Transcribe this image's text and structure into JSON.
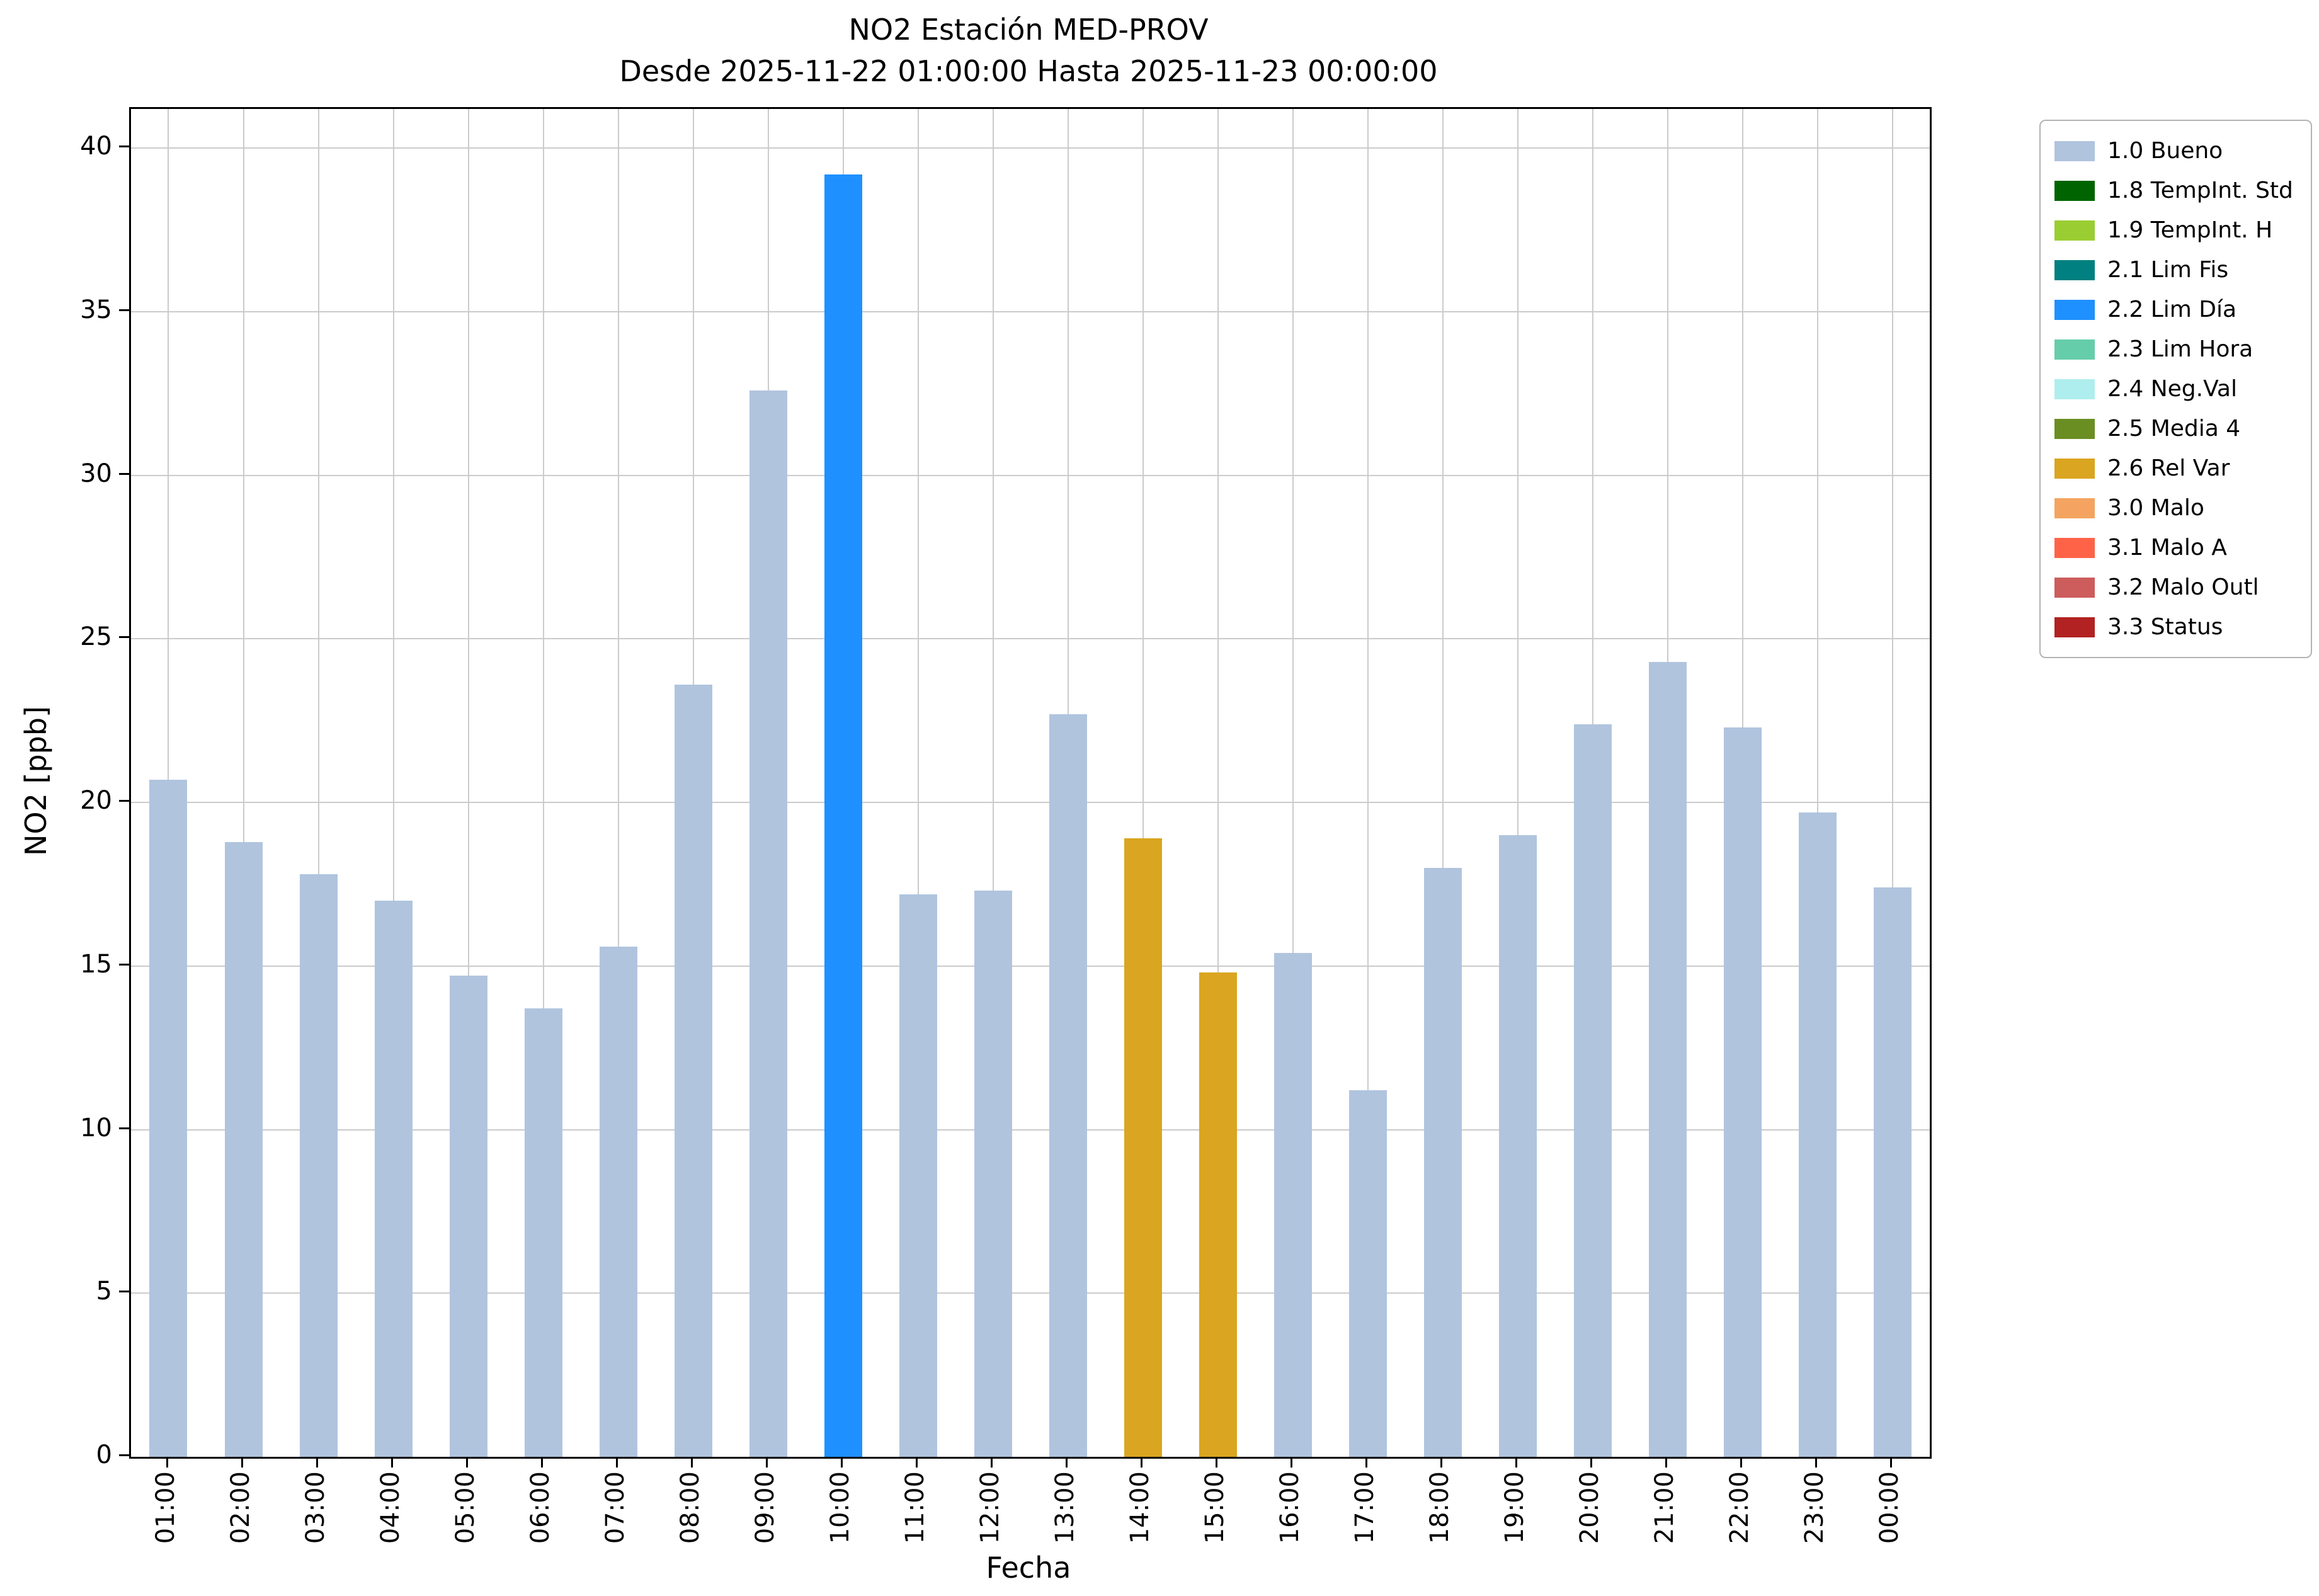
{
  "chart_data": {
    "type": "bar",
    "title": "NO2 Estación MED-PROV",
    "subtitle": "Desde 2025-11-22 01:00:00 Hasta 2025-11-23 00:00:00",
    "xlabel": "Fecha",
    "ylabel": "NO2 [ppb]",
    "ylim": [
      0,
      41.2
    ],
    "yticks": [
      0,
      5,
      10,
      15,
      20,
      25,
      30,
      35,
      40
    ],
    "grid": true,
    "legend_position": "outside upper right",
    "categories": [
      "01:00",
      "02:00",
      "03:00",
      "04:00",
      "05:00",
      "06:00",
      "07:00",
      "08:00",
      "09:00",
      "10:00",
      "11:00",
      "12:00",
      "13:00",
      "14:00",
      "15:00",
      "16:00",
      "17:00",
      "18:00",
      "19:00",
      "20:00",
      "21:00",
      "22:00",
      "23:00",
      "00:00"
    ],
    "values": [
      20.7,
      18.8,
      17.8,
      17.0,
      14.7,
      13.7,
      15.6,
      23.6,
      32.6,
      39.2,
      17.2,
      17.3,
      22.7,
      18.9,
      14.8,
      15.4,
      11.2,
      18.0,
      19.0,
      22.4,
      24.3,
      22.3,
      19.7,
      17.4
    ],
    "bar_status": [
      "1.0 Bueno",
      "1.0 Bueno",
      "1.0 Bueno",
      "1.0 Bueno",
      "1.0 Bueno",
      "1.0 Bueno",
      "1.0 Bueno",
      "1.0 Bueno",
      "1.0 Bueno",
      "2.2 Lim Día",
      "1.0 Bueno",
      "1.0 Bueno",
      "1.0 Bueno",
      "2.6 Rel Var",
      "2.6 Rel Var",
      "1.0 Bueno",
      "1.0 Bueno",
      "1.0 Bueno",
      "1.0 Bueno",
      "1.0 Bueno",
      "1.0 Bueno",
      "1.0 Bueno",
      "1.0 Bueno",
      "1.0 Bueno"
    ],
    "legend": [
      {
        "label": "1.0 Bueno",
        "color": "#b0c4de"
      },
      {
        "label": "1.8 TempInt. Std",
        "color": "#006400"
      },
      {
        "label": "1.9 TempInt. H",
        "color": "#9acd32"
      },
      {
        "label": "2.1 Lim Fis",
        "color": "#008080"
      },
      {
        "label": "2.2 Lim Día",
        "color": "#1e90ff"
      },
      {
        "label": "2.3 Lim Hora",
        "color": "#66cdaa"
      },
      {
        "label": "2.4 Neg.Val",
        "color": "#afeeee"
      },
      {
        "label": "2.5 Media 4",
        "color": "#6b8e23"
      },
      {
        "label": "2.6 Rel Var",
        "color": "#daa520"
      },
      {
        "label": "3.0 Malo",
        "color": "#f4a460"
      },
      {
        "label": "3.1 Malo A",
        "color": "#ff6347"
      },
      {
        "label": "3.2 Malo Outl",
        "color": "#cd5c5c"
      },
      {
        "label": "3.3 Status",
        "color": "#b22222"
      }
    ]
  }
}
